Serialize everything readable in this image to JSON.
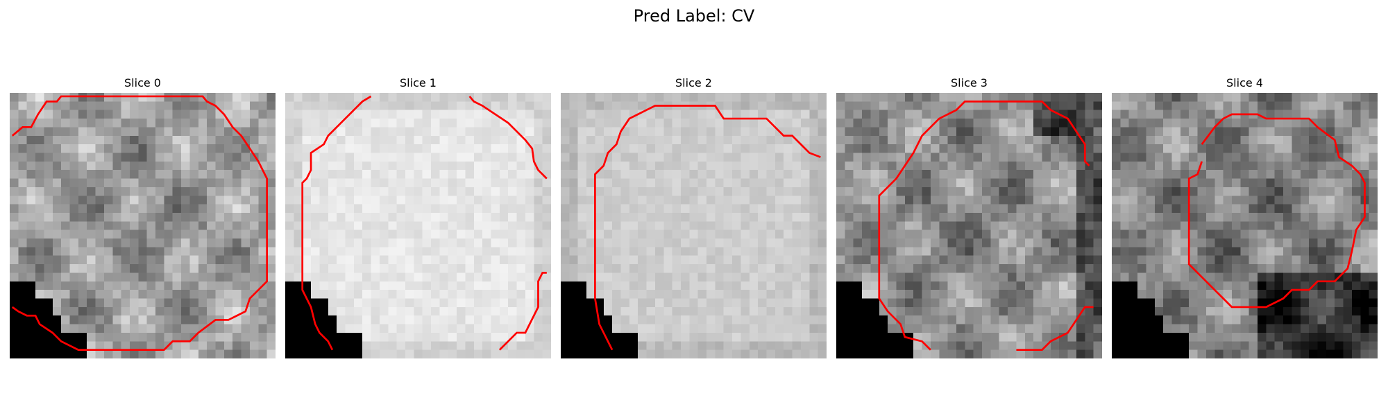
{
  "figure": {
    "title": "Pred Label: CV"
  },
  "slices": [
    {
      "label": "Slice 0",
      "base_gray": 165,
      "pattern": "textured",
      "mask": "corner"
    },
    {
      "label": "Slice 1",
      "base_gray": 230,
      "pattern": "smooth",
      "mask": "corner"
    },
    {
      "label": "Slice 2",
      "base_gray": 205,
      "pattern": "smooth",
      "mask": "corner"
    },
    {
      "label": "Slice 3",
      "base_gray": 150,
      "pattern": "textured",
      "mask": "corner"
    },
    {
      "label": "Slice 4",
      "base_gray": 140,
      "pattern": "textured",
      "mask": "corner"
    }
  ],
  "colors": {
    "contour": "#ff0000",
    "mask": "#000000",
    "background": "#ffffff"
  }
}
